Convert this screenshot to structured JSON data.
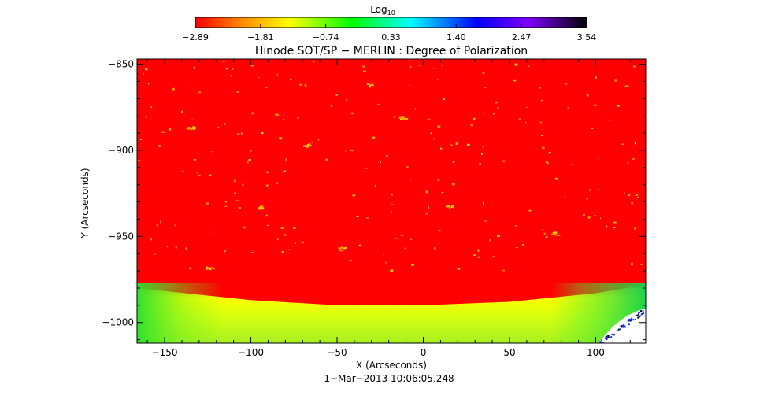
{
  "chart_data": {
    "type": "heatmap",
    "title": "Hinode SOT/SP − MERLIN : Degree of Polarization",
    "xlabel": "X (Arcseconds)",
    "ylabel": "Y (Arcseconds)",
    "timestamp": "1−Mar−2013 10:06:05.248",
    "xlim": [
      -166,
      129
    ],
    "ylim": [
      -1012,
      -847
    ],
    "x_ticks": [
      -150,
      -100,
      -50,
      0,
      50,
      100
    ],
    "y_ticks": [
      -850,
      -900,
      -950,
      -1000
    ],
    "x_tick_labels": [
      "−150",
      "−100",
      "−50",
      "0",
      "50",
      "100"
    ],
    "y_tick_labels": [
      "−850",
      "−900",
      "−950",
      "−1000"
    ],
    "colorbar": {
      "title_base": "Log",
      "title_sub": "10",
      "min": -2.89,
      "max": 3.54,
      "tick_labels": [
        "−2.89",
        "−1.81",
        "−0.74",
        "0.33",
        "1.40",
        "2.47",
        "3.54"
      ],
      "colors": [
        "#ff0000",
        "#ff8c00",
        "#ffff00",
        "#00ff00",
        "#00ffff",
        "#0000ff",
        "#8000ff",
        "#000000"
      ]
    },
    "background_level": -2.89,
    "limb_level": -0.74,
    "limb_edge_y": {
      "x": [
        -166,
        -100,
        -50,
        0,
        50,
        100,
        129
      ],
      "y": [
        -980,
        -987,
        -990,
        -990,
        -988,
        -983,
        -978
      ]
    },
    "off_disk_region_x_start": 100
  }
}
